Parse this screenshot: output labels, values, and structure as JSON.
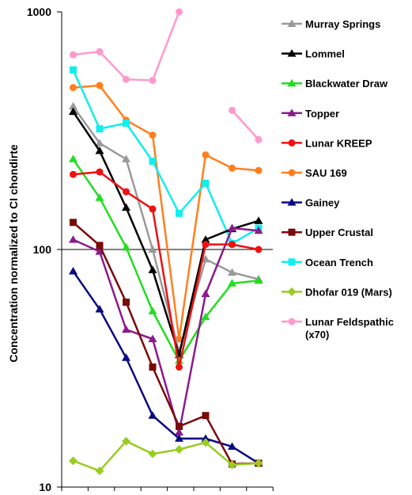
{
  "chart_data": {
    "type": "line",
    "xlabel": "",
    "ylabel": "Concentration normalized to CI chondirte",
    "yscale": "log",
    "ylim": [
      10,
      1000
    ],
    "yticks": [
      "10",
      "100",
      "1000"
    ],
    "x": [
      1,
      2,
      3,
      4,
      5,
      6,
      7,
      8
    ],
    "grid": "horizontal line at 100",
    "legend_position": "right",
    "series": [
      {
        "name": "Murray Springs",
        "color": "#999999",
        "marker": "triangle",
        "values": [
          400,
          280,
          240,
          100,
          37,
          91,
          80,
          75
        ]
      },
      {
        "name": "Lommel",
        "color": "#000000",
        "marker": "triangle",
        "values": [
          380,
          260,
          150,
          82,
          36,
          110,
          122,
          132
        ]
      },
      {
        "name": "Blackwater Draw",
        "color": "#22dd22",
        "marker": "triangle",
        "values": [
          240,
          165,
          102,
          55,
          34,
          52,
          72,
          74
        ]
      },
      {
        "name": "Topper",
        "color": "#8b1a8b",
        "marker": "triangle",
        "values": [
          110,
          98,
          46,
          42,
          17,
          65,
          123,
          120
        ]
      },
      {
        "name": "Lunar KREEP",
        "color": "#ee1111",
        "marker": "circle",
        "values": [
          207,
          212,
          175,
          148,
          32,
          105,
          105,
          100
        ]
      },
      {
        "name": "SAU 169",
        "color": "#ff7f1e",
        "marker": "circle",
        "values": [
          480,
          490,
          350,
          303,
          42,
          250,
          220,
          215
        ]
      },
      {
        "name": "Gainey",
        "color": "#0a0a80",
        "marker": "triangle",
        "values": [
          81,
          56,
          35,
          20,
          16,
          16,
          14.8,
          12.6
        ]
      },
      {
        "name": "Upper Crustal",
        "color": "#7a0a0a",
        "marker": "square",
        "values": [
          130,
          104,
          60,
          32,
          18,
          20,
          12.5,
          12.6
        ]
      },
      {
        "name": "Ocean Trench",
        "color": "#11eeee",
        "marker": "square",
        "values": [
          570,
          322,
          340,
          235,
          142,
          190,
          106,
          123
        ]
      },
      {
        "name": "Dhofar 019 (Mars)",
        "color": "#99cc22",
        "marker": "diamond",
        "values": [
          12.9,
          11.7,
          15.6,
          13.8,
          14.4,
          15.4,
          12.4,
          12.6
        ]
      },
      {
        "name": "Lunar Feldspathic\n(x70)",
        "color": "#ff99cc",
        "marker": "circle",
        "values": [
          660,
          680,
          520,
          515,
          1000,
          null,
          385,
          290
        ]
      }
    ]
  }
}
